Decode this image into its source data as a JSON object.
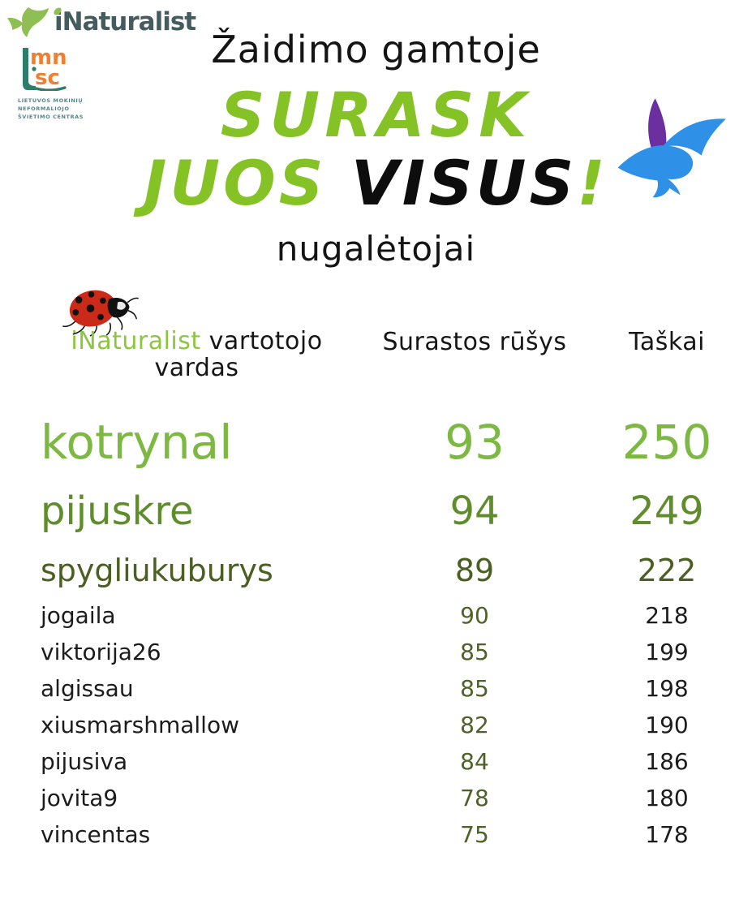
{
  "logos": {
    "inaturalist": {
      "text": "iNaturalist"
    },
    "lmnsc": {
      "letters_top": "mn",
      "letters_bottom": "sc",
      "lines": [
        "LIETUVOS MOKINIŲ",
        "NEFORMALIOJO",
        "ŠVIETIMO CENTRAS"
      ]
    }
  },
  "header": {
    "pretitle": "Žaidimo gamtoje",
    "title_line1": "SURASK",
    "title_line2_word1": "JUOS ",
    "title_line2_word2": "VISUS",
    "title_line2_exclaim": "!",
    "subtitle": "nugalėtojai"
  },
  "table": {
    "col1_header_green": "iNaturalist",
    "col1_header_black": " vartotojo",
    "col1_header_line2": "vardas",
    "col2_header": "Surastos rūšys",
    "col3_header": "Taškai",
    "rows": [
      {
        "name": "kotrynal",
        "species": 93,
        "points": 250
      },
      {
        "name": "pijuskre",
        "species": 94,
        "points": 249
      },
      {
        "name": "spygliukuburys",
        "species": 89,
        "points": 222
      },
      {
        "name": "jogaila",
        "species": 90,
        "points": 218
      },
      {
        "name": "viktorija26",
        "species": 85,
        "points": 199
      },
      {
        "name": "algissau",
        "species": 85,
        "points": 198
      },
      {
        "name": "xiusmarshmallow",
        "species": 82,
        "points": 190
      },
      {
        "name": "pijusiva",
        "species": 84,
        "points": 186
      },
      {
        "name": "jovita9",
        "species": 78,
        "points": 180
      },
      {
        "name": "vincentas",
        "species": 75,
        "points": 178
      }
    ]
  },
  "colors": {
    "title_green": "#84c226",
    "header_green": "#8cc63e",
    "rank1_green": "#7cb842",
    "rank2_green": "#5f8d2b",
    "rank3_green": "#4b5f22",
    "species_green": "#4e6227",
    "inat_slate": "#445c5e",
    "inat_green": "#8fbe53",
    "lmnsc_orange": "#ef8032",
    "lmnsc_teal": "#2e7d68",
    "lmnsc_text": "#50868f",
    "bird_blue": "#2f90e8",
    "bird_purple": "#6b2fa0",
    "ladybug_red": "#cb2a18"
  }
}
